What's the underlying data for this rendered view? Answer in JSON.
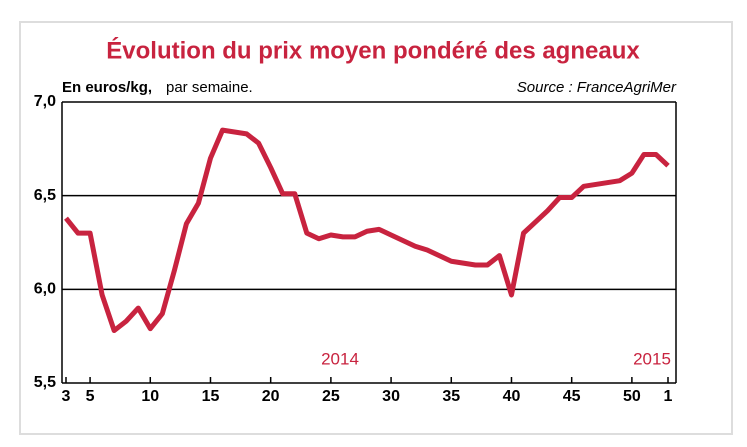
{
  "chart_data": {
    "type": "line",
    "title": "Évolution du prix moyen pondéré des agneaux",
    "subtitle_bold": "En euros/kg,",
    "subtitle": "par semaine.",
    "source": "Source : FranceAgriMer",
    "annotations": [
      "2014",
      "2015"
    ],
    "categories": [
      "3",
      null,
      "5",
      null,
      null,
      null,
      null,
      "10",
      null,
      null,
      null,
      null,
      "15",
      null,
      null,
      null,
      null,
      "20",
      null,
      null,
      null,
      null,
      "25",
      null,
      null,
      null,
      null,
      "30",
      null,
      null,
      null,
      null,
      "35",
      null,
      null,
      null,
      null,
      "40",
      null,
      null,
      null,
      null,
      "45",
      null,
      null,
      null,
      null,
      "50",
      null,
      null,
      "1"
    ],
    "series": [
      {
        "name": "Prix moyen pondéré",
        "color": "#c8233f",
        "values": [
          6.38,
          6.3,
          6.3,
          5.97,
          5.78,
          5.83,
          5.9,
          5.79,
          5.87,
          6.1,
          6.35,
          6.46,
          6.7,
          6.85,
          6.84,
          6.83,
          6.78,
          6.65,
          6.51,
          6.51,
          6.3,
          6.27,
          6.29,
          6.28,
          6.28,
          6.31,
          6.32,
          6.29,
          6.26,
          6.23,
          6.21,
          6.18,
          6.15,
          6.14,
          6.13,
          6.13,
          6.18,
          5.97,
          6.3,
          6.36,
          6.42,
          6.49,
          6.49,
          6.55,
          6.56,
          6.57,
          6.58,
          6.62,
          6.72,
          6.72,
          6.66
        ]
      }
    ],
    "ylim": [
      5.5,
      7.0
    ],
    "yticks": [
      {
        "value": 5.5,
        "label": "5,5"
      },
      {
        "value": 6.0,
        "label": "6,0"
      },
      {
        "value": 6.5,
        "label": "6,5"
      },
      {
        "value": 7.0,
        "label": "7,0"
      }
    ],
    "grid": true
  }
}
